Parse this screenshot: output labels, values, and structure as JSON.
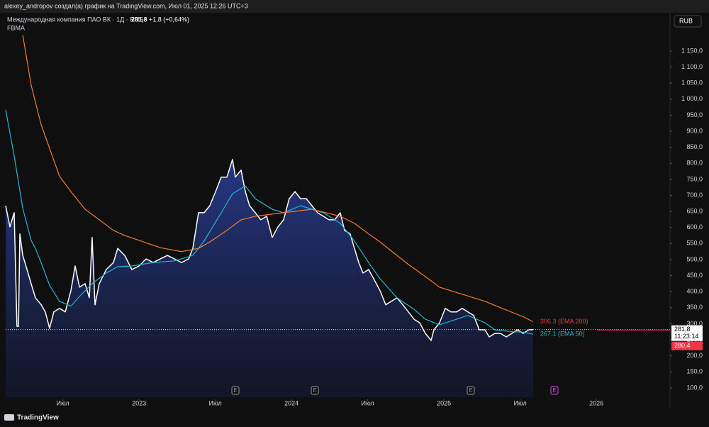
{
  "header": {
    "author_line": "alexey_andropov создал(а) график на TradingView.com, Июл 01, 2025 12:26 UTC+3",
    "symbol": "Международная компания ПАО ВК · 1Д · RUS",
    "change": "+1,8 (+0,64%)",
    "indicator": "FBMA",
    "currency": "RUB",
    "brand": "TradingView"
  },
  "chart_data": {
    "type": "line",
    "xlim": [
      2022.125,
      2026.483
    ],
    "ylim": [
      71,
      1265
    ],
    "xticks": [
      {
        "value": 2022.5,
        "label": "Июл"
      },
      2023,
      {
        "value": 2023.5,
        "label": "Июл"
      },
      2024,
      {
        "value": 2024.5,
        "label": "Июл"
      },
      2025,
      {
        "value": 2025.5,
        "label": "Июл"
      },
      2026
    ],
    "yticks": [
      {
        "value": 100,
        "label": "100,0"
      },
      {
        "value": 150,
        "label": "150,0"
      },
      {
        "value": 200,
        "label": "200,0"
      },
      {
        "value": 250,
        "label": "250,0"
      },
      {
        "value": 300,
        "label": "300,0"
      },
      {
        "value": 350,
        "label": "350,0"
      },
      {
        "value": 400,
        "label": "400,0"
      },
      {
        "value": 450,
        "label": "450,0"
      },
      {
        "value": 500,
        "label": "500,0"
      },
      {
        "value": 550,
        "label": "550,0"
      },
      {
        "value": 600,
        "label": "600,0"
      },
      {
        "value": 650,
        "label": "650,0"
      },
      {
        "value": 700,
        "label": "700,0"
      },
      {
        "value": 750,
        "label": "750,0"
      },
      {
        "value": 800,
        "label": "800,0"
      },
      {
        "value": 850,
        "label": "850,0"
      },
      {
        "value": 900,
        "label": "900,0"
      },
      {
        "value": 950,
        "label": "950,0"
      },
      {
        "value": 1000,
        "label": "1 000,0"
      },
      {
        "value": 1050,
        "label": "1 050,0"
      },
      {
        "value": 1100,
        "label": "1 100,0"
      },
      {
        "value": 1150,
        "label": "1 150,0"
      }
    ],
    "series": [
      {
        "name": "Международная компания ПАО ВК",
        "color": "#ffffff",
        "fill": true,
        "x": [
          2022.125,
          2022.153,
          2022.181,
          2022.199,
          2022.209,
          2022.218,
          2022.237,
          2022.265,
          2022.292,
          2022.32,
          2022.358,
          2022.385,
          2022.413,
          2022.441,
          2022.478,
          2022.516,
          2022.553,
          2022.581,
          2022.609,
          2022.646,
          2022.674,
          2022.692,
          2022.711,
          2022.739,
          2022.785,
          2022.832,
          2022.86,
          2022.906,
          2022.953,
          2023.0,
          2023.046,
          2023.093,
          2023.139,
          2023.186,
          2023.232,
          2023.279,
          2023.325,
          2023.353,
          2023.39,
          2023.427,
          2023.464,
          2023.502,
          2023.539,
          2023.576,
          2023.613,
          2023.632,
          2023.669,
          2023.697,
          2023.725,
          2023.762,
          2023.799,
          2023.837,
          2023.874,
          2023.911,
          2023.948,
          2023.985,
          2024.023,
          2024.06,
          2024.097,
          2024.134,
          2024.171,
          2024.209,
          2024.246,
          2024.283,
          2024.32,
          2024.348,
          2024.385,
          2024.413,
          2024.441,
          2024.469,
          2024.506,
          2024.544,
          2024.581,
          2024.618,
          2024.655,
          2024.692,
          2024.73,
          2024.767,
          2024.804,
          2024.841,
          2024.878,
          2024.916,
          2024.934,
          2024.971,
          2025.009,
          2025.046,
          2025.083,
          2025.12,
          2025.157,
          2025.195,
          2025.232,
          2025.269,
          2025.297,
          2025.334,
          2025.371,
          2025.409,
          2025.446,
          2025.483,
          2025.52,
          2025.557,
          2025.585
        ],
        "values": [
          668,
          602,
          646,
          292,
          292,
          580,
          513,
          469,
          425,
          381,
          359,
          337,
          286,
          337,
          348,
          337,
          403,
          480,
          414,
          425,
          381,
          569,
          359,
          425,
          469,
          491,
          535,
          513,
          469,
          480,
          502,
          491,
          502,
          513,
          502,
          491,
          502,
          535,
          646,
          646,
          668,
          712,
          757,
          757,
          812,
          757,
          779,
          712,
          668,
          646,
          624,
          635,
          569,
          602,
          624,
          690,
          712,
          690,
          690,
          668,
          646,
          635,
          624,
          624,
          646,
          591,
          580,
          535,
          491,
          458,
          469,
          436,
          403,
          359,
          370,
          381,
          359,
          337,
          314,
          303,
          270,
          248,
          281,
          303,
          348,
          337,
          337,
          348,
          337,
          326,
          281,
          281,
          259,
          270,
          270,
          259,
          270,
          281,
          270,
          281,
          281.8
        ]
      },
      {
        "name": "EMA 50",
        "color": "#22b5d6",
        "end_label": "267.1 (EMA 50)",
        "label_color": "#22b5d6",
        "x": [
          2022.125,
          2022.181,
          2022.237,
          2022.292,
          2022.32,
          2022.358,
          2022.413,
          2022.478,
          2022.553,
          2022.609,
          2022.692,
          2022.785,
          2022.86,
          2022.953,
          2023.093,
          2023.232,
          2023.353,
          2023.427,
          2023.539,
          2023.613,
          2023.697,
          2023.762,
          2023.874,
          2023.948,
          2024.06,
          2024.134,
          2024.209,
          2024.32,
          2024.413,
          2024.506,
          2024.581,
          2024.692,
          2024.804,
          2024.878,
          2024.971,
          2025.083,
          2025.157,
          2025.269,
          2025.334,
          2025.446,
          2025.52,
          2025.585
        ],
        "values": [
          967,
          823,
          660,
          560,
          535,
          490,
          420,
          370,
          355,
          385,
          425,
          458,
          478,
          480,
          491,
          496,
          513,
          558,
          646,
          705,
          730,
          690,
          657,
          646,
          668,
          657,
          646,
          613,
          558,
          491,
          440,
          381,
          345,
          314,
          297,
          314,
          326,
          303,
          281,
          275,
          274,
          267.1
        ]
      },
      {
        "name": "EMA 200",
        "color": "#f57c2f",
        "end_label": "306.3 (EMA 200)",
        "label_color": "#f23645",
        "x": [
          2022.237,
          2022.292,
          2022.358,
          2022.478,
          2022.553,
          2022.646,
          2022.739,
          2022.832,
          2022.906,
          2023.0,
          2023.139,
          2023.279,
          2023.39,
          2023.464,
          2023.576,
          2023.669,
          2023.762,
          2023.948,
          2024.134,
          2024.32,
          2024.413,
          2024.506,
          2024.581,
          2024.692,
          2024.767,
          2024.878,
          2024.971,
          2025.12,
          2025.269,
          2025.371,
          2025.52,
          2025.585
        ],
        "values": [
          1200,
          1044,
          920,
          760,
          712,
          657,
          624,
          591,
          575,
          560,
          537,
          525,
          535,
          555,
          591,
          624,
          635,
          646,
          657,
          635,
          613,
          580,
          555,
          513,
          485,
          447,
          414,
          392,
          370,
          350,
          322,
          306.3
        ]
      }
    ],
    "price_lines": [
      {
        "value": 281.8,
        "label": "281,8",
        "time": "11:23:14",
        "color": "#ffffff"
      },
      {
        "value": 280.4,
        "label": "280,4",
        "color": "#f23645"
      }
    ],
    "events": [
      {
        "x": 2023.632,
        "label": "E",
        "color": "#9598a1"
      },
      {
        "x": 2024.153,
        "label": "E",
        "color": "#9598a1"
      },
      {
        "x": 2025.176,
        "label": "E",
        "color": "#9598a1"
      },
      {
        "x": 2025.725,
        "label": "E",
        "color": "#e040fb"
      }
    ]
  }
}
